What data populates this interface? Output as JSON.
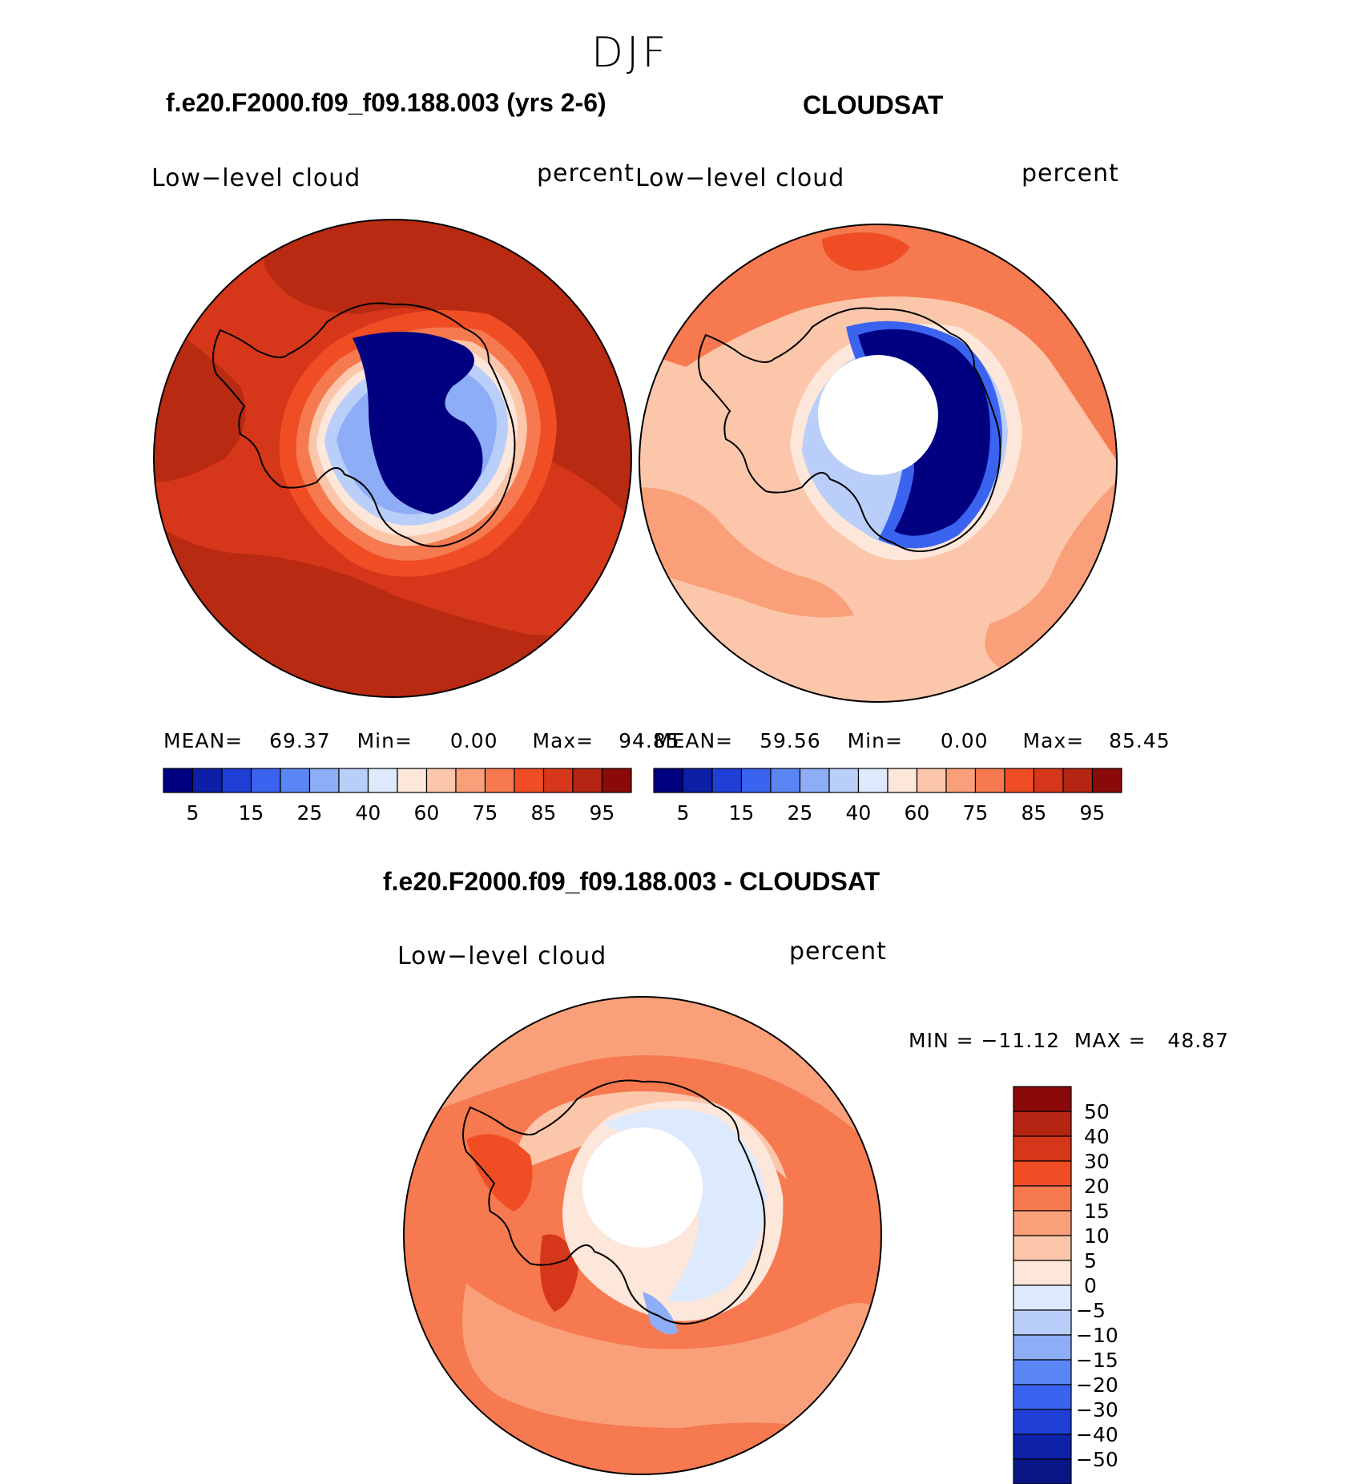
{
  "figure": {
    "season": "DJF",
    "colors": {
      "fifteen_scale": [
        "#000080",
        "#0d1fa6",
        "#1f3fd6",
        "#3a63f0",
        "#5a86f5",
        "#8eadf7",
        "#b9cff9",
        "#dde9fc",
        "#fde6da",
        "#fcc6ab",
        "#f9a07a",
        "#f6794f",
        "#f04d24",
        "#d6361a",
        "#b52514",
        "#8a0a0a"
      ],
      "diff_scale": [
        "#0a1685",
        "#0d22a8",
        "#1f3fd6",
        "#3a63f0",
        "#5a86f5",
        "#8eadf7",
        "#b9cff9",
        "#dde9fc",
        "#fde6da",
        "#fcc6ab",
        "#f9a07a",
        "#f6794f",
        "#f04d24",
        "#d6361a",
        "#b52514",
        "#8a0a0a"
      ],
      "accent_dark_red": "#b82a12",
      "ocean_low_red": "#f9a07a"
    }
  },
  "panels": [
    {
      "title": "f.e20.F2000.f09_f09.188.003 (yrs 2-6)",
      "left_label": "Low−level cloud",
      "right_label": "percent",
      "stats": {
        "mean_label": "MEAN=",
        "mean": "69.37",
        "min_label": "Min=",
        "min": "0.00",
        "max_label": "Max=",
        "max": "94.85"
      }
    },
    {
      "title": "CLOUDSAT",
      "left_label": "Low−level cloud",
      "right_label": "percent",
      "stats": {
        "mean_label": "MEAN=",
        "mean": "59.56",
        "min_label": "Min=",
        "min": "0.00",
        "max_label": "Max=",
        "max": "85.45"
      }
    },
    {
      "title": "f.e20.F2000.f09_f09.188.003 - CLOUDSAT",
      "left_label": "Low−level cloud",
      "right_label": "percent",
      "minmax": "MIN = −11.12  MAX =   48.87"
    }
  ],
  "colorbar_ticks": [
    "5",
    "15",
    "25",
    "40",
    "60",
    "75",
    "85",
    "95"
  ],
  "diff_ticks": [
    "50",
    "40",
    "30",
    "20",
    "15",
    "10",
    "5",
    "0",
    "−5",
    "−10",
    "−15",
    "−20",
    "−30",
    "−40",
    "−50"
  ],
  "chart_data": [
    {
      "type": "heatmap",
      "projection": "south polar stereographic",
      "title": "f.e20.F2000.f09_f09.188.003 (yrs 2-6)",
      "variable": "Low−level cloud",
      "units": "percent",
      "mean": 69.37,
      "min": 0.0,
      "max": 94.85,
      "contour_levels": [
        5,
        10,
        15,
        20,
        25,
        30,
        40,
        50,
        60,
        70,
        75,
        80,
        85,
        90,
        95
      ]
    },
    {
      "type": "heatmap",
      "projection": "south polar stereographic",
      "title": "CLOUDSAT",
      "variable": "Low−level cloud",
      "units": "percent",
      "mean": 59.56,
      "min": 0.0,
      "max": 85.45,
      "contour_levels": [
        5,
        10,
        15,
        20,
        25,
        30,
        40,
        50,
        60,
        70,
        75,
        80,
        85,
        90,
        95
      ]
    },
    {
      "type": "heatmap",
      "projection": "south polar stereographic",
      "title": "f.e20.F2000.f09_f09.188.003 - CLOUDSAT",
      "variable": "Low−level cloud",
      "units": "percent",
      "min": -11.12,
      "max": 48.87,
      "contour_levels": [
        -50,
        -40,
        -30,
        -20,
        -15,
        -10,
        -5,
        0,
        5,
        10,
        15,
        20,
        30,
        40,
        50
      ]
    }
  ]
}
